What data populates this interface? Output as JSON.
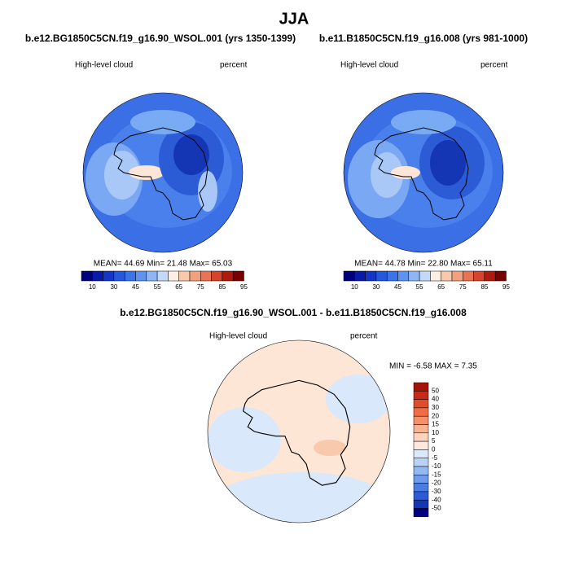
{
  "title": "JJA",
  "panels": [
    {
      "title": "b.e12.BG1850C5CN.f19_g16.90_WSOL.001 (yrs 1350-1399)",
      "variable": "High-level cloud",
      "units": "percent",
      "stats": "MEAN=  44.69  Min=  21.48  Max=  65.03",
      "colorbar_labels": [
        10,
        30,
        45,
        55,
        65,
        75,
        85,
        95
      ]
    },
    {
      "title": "b.e11.B1850C5CN.f19_g16.008 (yrs 981-1000)",
      "variable": "High-level cloud",
      "units": "percent",
      "stats": "MEAN=  44.78  Min=  22.80  Max=  65.11",
      "colorbar_labels": [
        10,
        30,
        45,
        55,
        65,
        75,
        85,
        95
      ]
    },
    {
      "title": "b.e12.BG1850C5CN.f19_g16.90_WSOL.001 - b.e11.B1850C5CN.f19_g16.008",
      "variable": "High-level cloud",
      "units": "percent",
      "stats": "MIN =  -6.58 MAX =   7.35",
      "colorbar_labels": [
        50,
        40,
        30,
        20,
        15,
        10,
        5,
        0,
        -5,
        -10,
        -15,
        -20,
        -30,
        -40,
        -50
      ]
    }
  ]
}
